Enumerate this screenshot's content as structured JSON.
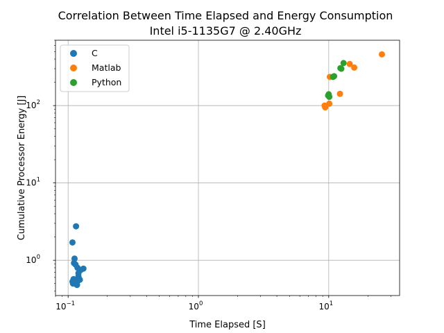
{
  "chart_data": {
    "type": "scatter",
    "title": "Correlation Between Time Elapsed and Energy Consumption",
    "subtitle": "Intel i5-1135G7 @ 2.40GHz",
    "xlabel": "Time Elapsed [S]",
    "ylabel": "Cumulative Processor Energy [J]",
    "xscale": "log",
    "yscale": "log",
    "xlim": [
      0.08,
      35
    ],
    "ylim": [
      0.35,
      700
    ],
    "grid": true,
    "legend_position": "upper-left",
    "x_ticks": [
      {
        "value": 0.1,
        "base": "10",
        "exp": "−1"
      },
      {
        "value": 1,
        "base": "10",
        "exp": "0"
      },
      {
        "value": 10,
        "base": "10",
        "exp": "1"
      }
    ],
    "y_ticks": [
      {
        "value": 1,
        "base": "10",
        "exp": "0"
      },
      {
        "value": 10,
        "base": "10",
        "exp": "1"
      },
      {
        "value": 100,
        "base": "10",
        "exp": "2"
      }
    ],
    "series": [
      {
        "name": "C",
        "color": "#1f77b4",
        "points": [
          {
            "x": 0.115,
            "y": 2.75
          },
          {
            "x": 0.108,
            "y": 1.7
          },
          {
            "x": 0.112,
            "y": 1.05
          },
          {
            "x": 0.111,
            "y": 0.92
          },
          {
            "x": 0.114,
            "y": 0.88
          },
          {
            "x": 0.131,
            "y": 0.78
          },
          {
            "x": 0.118,
            "y": 0.8
          },
          {
            "x": 0.125,
            "y": 0.75
          },
          {
            "x": 0.12,
            "y": 0.68
          },
          {
            "x": 0.12,
            "y": 0.62
          },
          {
            "x": 0.121,
            "y": 0.58
          },
          {
            "x": 0.11,
            "y": 0.57
          },
          {
            "x": 0.113,
            "y": 0.55
          },
          {
            "x": 0.108,
            "y": 0.53
          },
          {
            "x": 0.116,
            "y": 0.52
          },
          {
            "x": 0.12,
            "y": 0.55
          },
          {
            "x": 0.109,
            "y": 0.5
          },
          {
            "x": 0.112,
            "y": 0.5
          },
          {
            "x": 0.117,
            "y": 0.48
          },
          {
            "x": 0.123,
            "y": 0.56
          }
        ]
      },
      {
        "name": "Matlab",
        "color": "#ff7f0e",
        "points": [
          {
            "x": 25.6,
            "y": 460
          },
          {
            "x": 14.5,
            "y": 345
          },
          {
            "x": 15.7,
            "y": 310
          },
          {
            "x": 10.2,
            "y": 235
          },
          {
            "x": 12.2,
            "y": 142
          },
          {
            "x": 10.1,
            "y": 106
          },
          {
            "x": 9.3,
            "y": 100
          },
          {
            "x": 9.4,
            "y": 95
          }
        ]
      },
      {
        "name": "Python",
        "color": "#2ca02c",
        "points": [
          {
            "x": 13.0,
            "y": 355
          },
          {
            "x": 12.3,
            "y": 305
          },
          {
            "x": 12.5,
            "y": 300
          },
          {
            "x": 11.0,
            "y": 240
          },
          {
            "x": 10.8,
            "y": 235
          },
          {
            "x": 10.0,
            "y": 140
          },
          {
            "x": 9.9,
            "y": 135
          },
          {
            "x": 10.1,
            "y": 130
          }
        ]
      }
    ]
  }
}
